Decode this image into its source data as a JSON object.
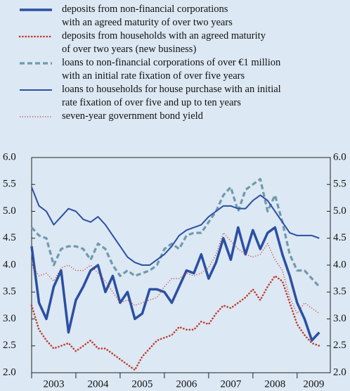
{
  "chart_data": {
    "type": "line",
    "xlim": [
      2003,
      2009.75
    ],
    "xticks": [
      2003,
      2004,
      2005,
      2006,
      2007,
      2008,
      2009
    ],
    "ylim": [
      2.0,
      6.0
    ],
    "yticks": [
      {
        "value": 2.0,
        "label": "2.0"
      },
      2.5,
      {
        "value": 3.0,
        "label": "3.0"
      },
      3.5,
      {
        "value": 4.0,
        "label": "4.0"
      },
      4.5,
      {
        "value": 5.0,
        "label": "5.0"
      },
      5.5,
      {
        "value": 6.0,
        "label": "6.0"
      }
    ],
    "x": [
      2003.0,
      2003.167,
      2003.333,
      2003.5,
      2003.667,
      2003.833,
      2004.0,
      2004.167,
      2004.333,
      2004.5,
      2004.667,
      2004.833,
      2005.0,
      2005.167,
      2005.333,
      2005.5,
      2005.667,
      2005.833,
      2006.0,
      2006.167,
      2006.333,
      2006.5,
      2006.667,
      2006.833,
      2007.0,
      2007.167,
      2007.333,
      2007.5,
      2007.667,
      2007.833,
      2008.0,
      2008.167,
      2008.333,
      2008.5,
      2008.667,
      2008.833,
      2009.0,
      2009.167,
      2009.333,
      2009.5
    ],
    "series": [
      {
        "name": "deposits from non-financial corporations\nwith an agreed maturity of over two years",
        "color": "#2b4fa3",
        "style": "thick",
        "values": [
          4.35,
          3.3,
          3.0,
          3.6,
          3.9,
          2.75,
          3.35,
          3.6,
          3.9,
          4.0,
          3.5,
          3.8,
          3.3,
          3.5,
          3.0,
          3.1,
          3.55,
          3.55,
          3.5,
          3.3,
          3.6,
          3.9,
          3.85,
          4.2,
          3.75,
          4.05,
          4.5,
          4.1,
          4.7,
          4.2,
          4.65,
          4.3,
          4.6,
          4.7,
          4.2,
          3.8,
          3.3,
          3.0,
          2.6,
          2.75
        ]
      },
      {
        "name": "deposits from households with an agreed maturity\nof over two years (new business)",
        "color": "#c0392b",
        "style": "dotted",
        "values": [
          3.25,
          2.8,
          2.6,
          2.45,
          2.5,
          2.55,
          2.4,
          2.5,
          2.6,
          2.45,
          2.45,
          2.35,
          2.25,
          2.15,
          2.05,
          2.3,
          2.45,
          2.6,
          2.65,
          2.7,
          2.85,
          2.8,
          2.8,
          2.95,
          2.9,
          3.1,
          3.25,
          3.2,
          3.3,
          3.4,
          3.55,
          3.35,
          3.6,
          3.8,
          3.7,
          3.3,
          2.9,
          2.7,
          2.55,
          2.5
        ]
      },
      {
        "name": "loans to non-financial corporations of over €1 million\nwith an initial rate fixation of over five years",
        "color": "#6f9aab",
        "style": "dashed",
        "values": [
          4.7,
          4.55,
          4.5,
          4.0,
          4.3,
          4.35,
          4.35,
          4.3,
          4.1,
          4.4,
          4.3,
          4.0,
          3.8,
          3.9,
          3.8,
          3.85,
          3.9,
          4.0,
          4.3,
          4.4,
          4.3,
          4.55,
          4.6,
          4.6,
          4.8,
          5.0,
          5.3,
          5.45,
          5.0,
          5.4,
          5.5,
          5.6,
          5.0,
          5.3,
          4.8,
          4.2,
          3.9,
          3.9,
          3.75,
          3.6
        ]
      },
      {
        "name": "loans to households for house purchase with an initial\nrate fixation of over five and up to ten years",
        "color": "#2b4fa3",
        "style": "solid",
        "values": [
          5.45,
          5.1,
          5.0,
          4.75,
          4.9,
          5.05,
          5.0,
          4.85,
          4.8,
          4.9,
          4.75,
          4.55,
          4.35,
          4.15,
          4.05,
          4.0,
          4.0,
          4.1,
          4.2,
          4.35,
          4.55,
          4.65,
          4.7,
          4.75,
          4.9,
          5.0,
          5.1,
          5.1,
          5.05,
          5.05,
          5.2,
          5.3,
          5.2,
          5.0,
          4.8,
          4.6,
          4.55,
          4.55,
          4.55,
          4.5
        ]
      },
      {
        "name": "seven-year government bond yield",
        "color": "#c0392b",
        "style": "thin-dotted",
        "values": [
          4.0,
          3.8,
          3.85,
          3.7,
          3.95,
          4.0,
          3.9,
          3.9,
          4.0,
          3.85,
          3.7,
          3.5,
          3.3,
          3.35,
          3.25,
          3.3,
          3.35,
          3.4,
          3.6,
          3.75,
          3.75,
          3.85,
          3.8,
          3.85,
          3.95,
          4.2,
          4.6,
          4.45,
          4.3,
          4.2,
          4.15,
          4.2,
          4.4,
          4.1,
          3.9,
          3.4,
          3.1,
          3.3,
          3.2,
          3.1
        ]
      }
    ]
  }
}
